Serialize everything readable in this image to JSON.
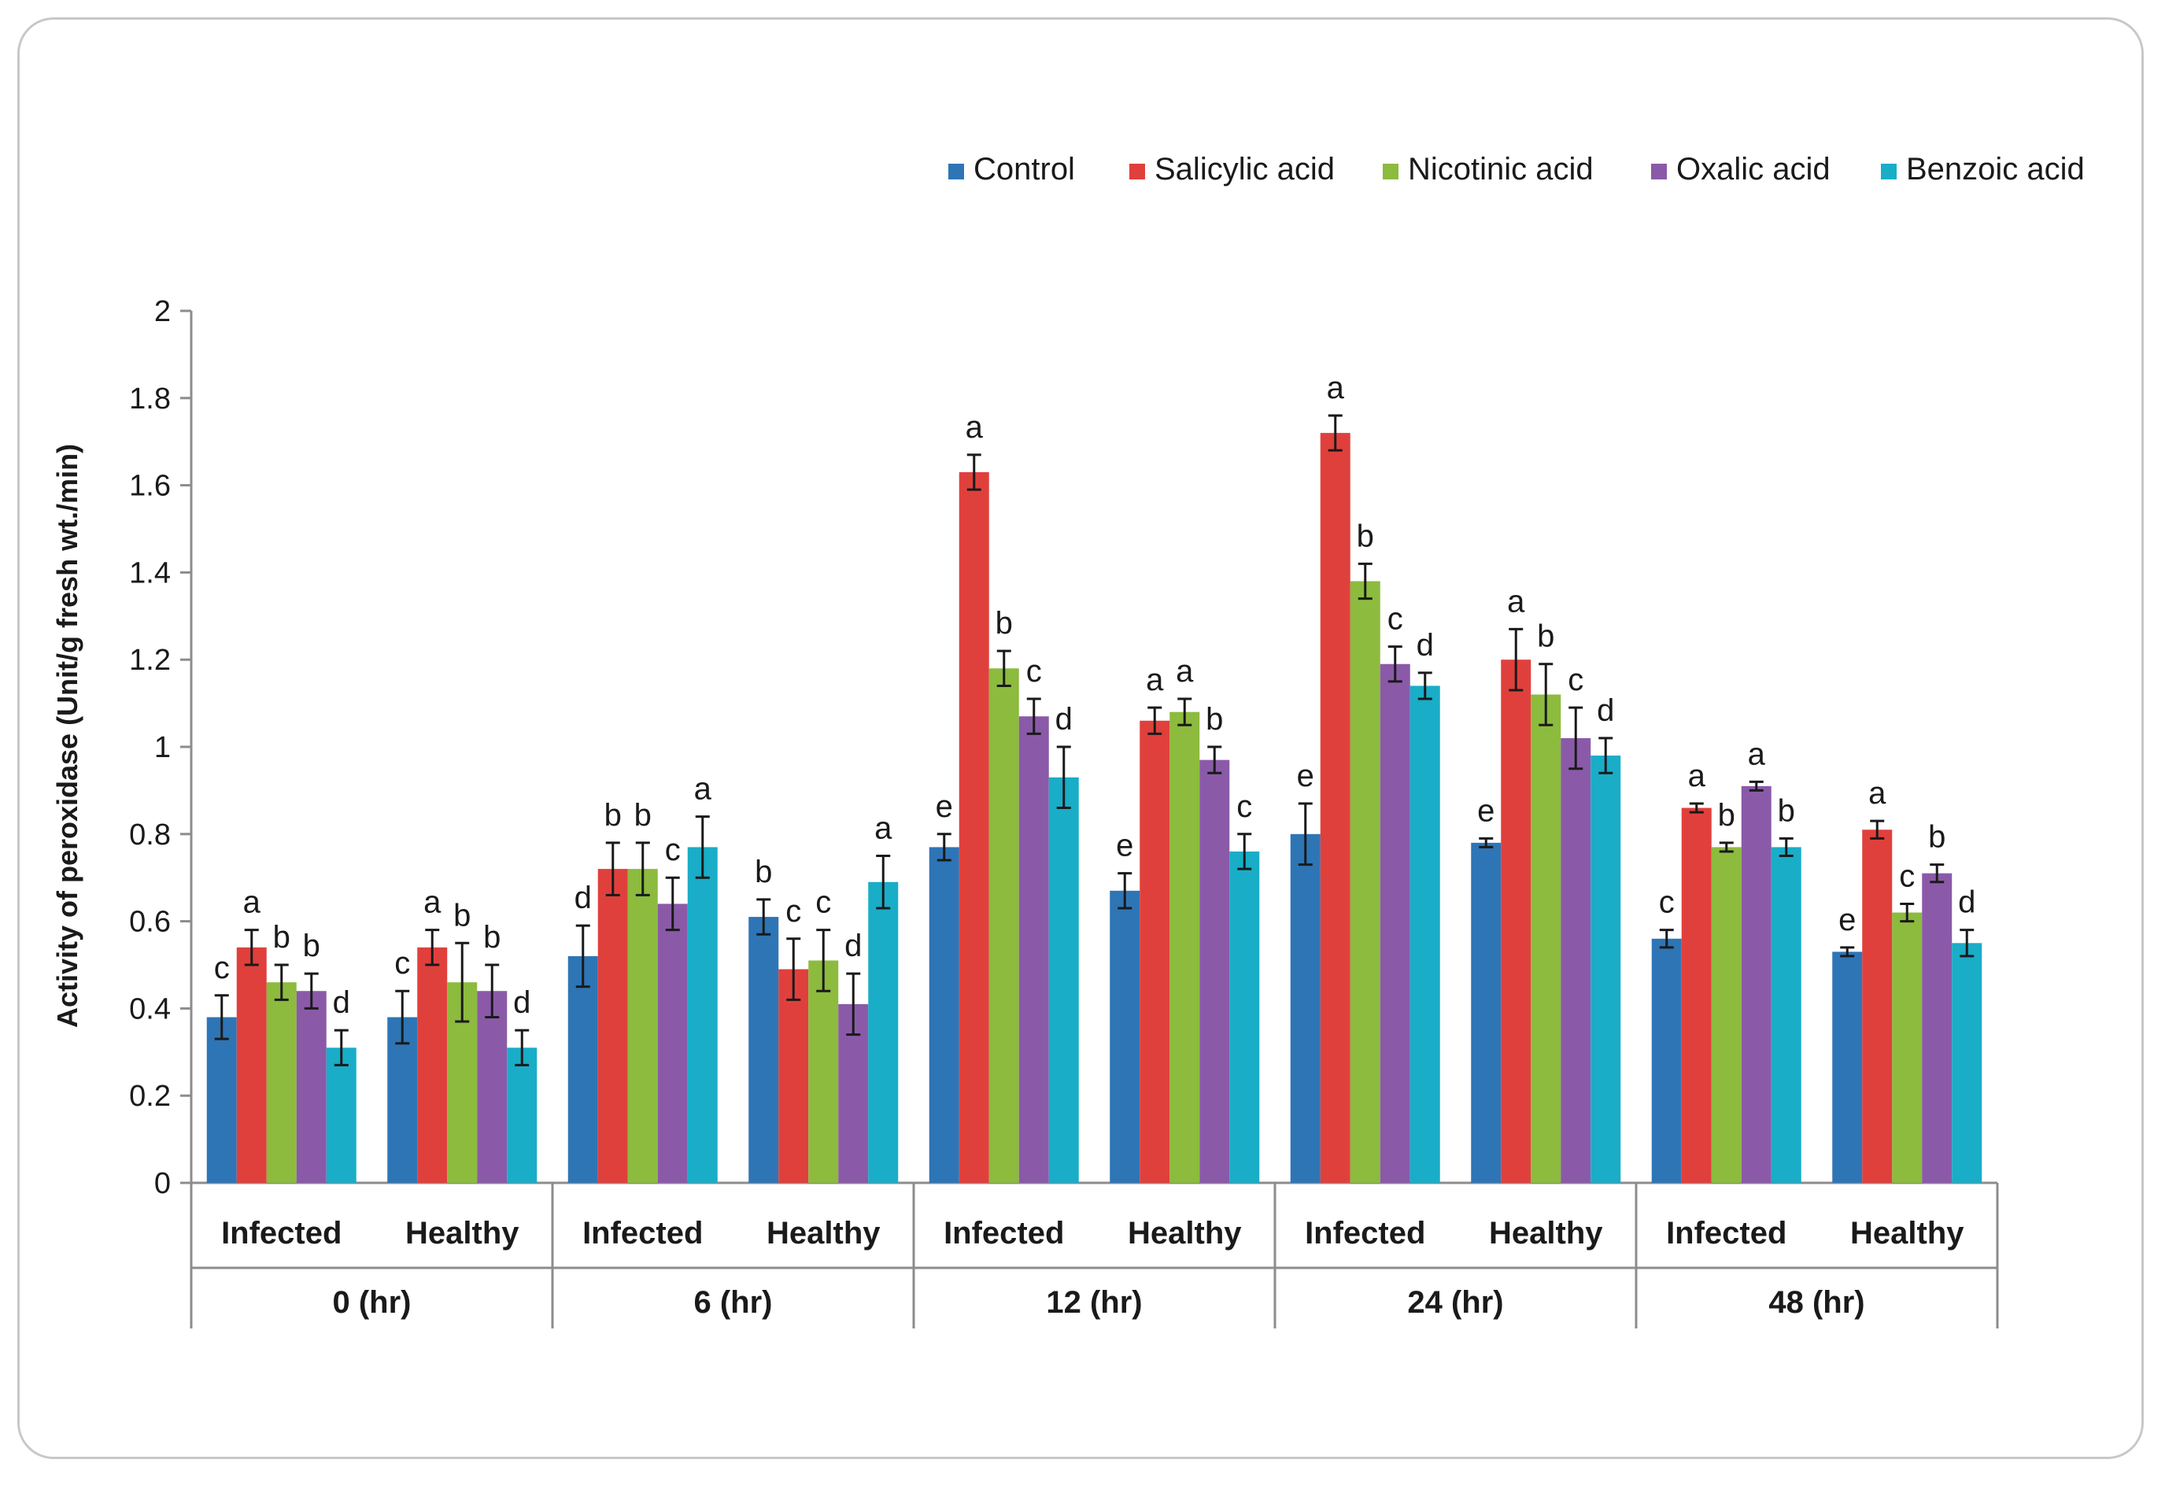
{
  "colors": {
    "Control": "#2e75b6",
    "Salicylic acid": "#e0403c",
    "Nicotinic acid": "#8cbb3e",
    "Oxalic acid": "#8a5aa8",
    "Benzoic acid": "#19adc8"
  },
  "chart_data": {
    "type": "bar",
    "title": "",
    "xlabel": "",
    "ylabel": "Activity of peroxidase (Unit/g fresh wt./min)",
    "ylim": [
      0,
      2
    ],
    "yticks": [
      "0",
      "0.2",
      "0.4",
      "0.6",
      "0.8",
      "1",
      "1.2",
      "1.4",
      "1.6",
      "1.8",
      "2"
    ],
    "legend_position": "top-right",
    "grid": false,
    "groups": [
      "0 (hr)",
      "6 (hr)",
      "12 (hr)",
      "24 (hr)",
      "48 (hr)"
    ],
    "categories": [
      {
        "group": "0 (hr)",
        "label": "Infected"
      },
      {
        "group": "0 (hr)",
        "label": "Healthy"
      },
      {
        "group": "6 (hr)",
        "label": "Infected"
      },
      {
        "group": "6 (hr)",
        "label": "Healthy"
      },
      {
        "group": "12 (hr)",
        "label": "Infected"
      },
      {
        "group": "12 (hr)",
        "label": "Healthy"
      },
      {
        "group": "24 (hr)",
        "label": "Infected"
      },
      {
        "group": "24 (hr)",
        "label": "Healthy"
      },
      {
        "group": "48 (hr)",
        "label": "Infected"
      },
      {
        "group": "48 (hr)",
        "label": "Healthy"
      }
    ],
    "series": [
      {
        "name": "Control",
        "values": [
          0.38,
          0.38,
          0.52,
          0.61,
          0.77,
          0.67,
          0.8,
          0.78,
          0.56,
          0.53
        ],
        "errors": [
          0.05,
          0.06,
          0.07,
          0.04,
          0.03,
          0.04,
          0.07,
          0.01,
          0.02,
          0.01
        ],
        "letters": [
          "c",
          "c",
          "d",
          "b",
          "e",
          "e",
          "e",
          "e",
          "c",
          "e"
        ]
      },
      {
        "name": "Salicylic acid",
        "values": [
          0.54,
          0.54,
          0.72,
          0.49,
          1.63,
          1.06,
          1.72,
          1.2,
          0.86,
          0.81
        ],
        "errors": [
          0.04,
          0.04,
          0.06,
          0.07,
          0.04,
          0.03,
          0.04,
          0.07,
          0.01,
          0.02
        ],
        "letters": [
          "a",
          "a",
          "b",
          "c",
          "a",
          "a",
          "a",
          "a",
          "a",
          "a"
        ]
      },
      {
        "name": "Nicotinic acid",
        "values": [
          0.46,
          0.46,
          0.72,
          0.51,
          1.18,
          1.08,
          1.38,
          1.12,
          0.77,
          0.62
        ],
        "errors": [
          0.04,
          0.09,
          0.06,
          0.07,
          0.04,
          0.03,
          0.04,
          0.07,
          0.01,
          0.02
        ],
        "letters": [
          "b",
          "b",
          "b",
          "c",
          "b",
          "a",
          "b",
          "b",
          "b",
          "c"
        ]
      },
      {
        "name": "Oxalic acid",
        "values": [
          0.44,
          0.44,
          0.64,
          0.41,
          1.07,
          0.97,
          1.19,
          1.02,
          0.91,
          0.71
        ],
        "errors": [
          0.04,
          0.06,
          0.06,
          0.07,
          0.04,
          0.03,
          0.04,
          0.07,
          0.01,
          0.02
        ],
        "letters": [
          "b",
          "b",
          "c",
          "d",
          "c",
          "b",
          "c",
          "c",
          "a",
          "b"
        ]
      },
      {
        "name": "Benzoic acid",
        "values": [
          0.31,
          0.31,
          0.77,
          0.69,
          0.93,
          0.76,
          1.14,
          0.98,
          0.77,
          0.55
        ],
        "errors": [
          0.04,
          0.04,
          0.07,
          0.06,
          0.07,
          0.04,
          0.03,
          0.04,
          0.02,
          0.03
        ],
        "letters": [
          "d",
          "d",
          "a",
          "a",
          "d",
          "c",
          "d",
          "d",
          "b",
          "d"
        ]
      }
    ]
  }
}
